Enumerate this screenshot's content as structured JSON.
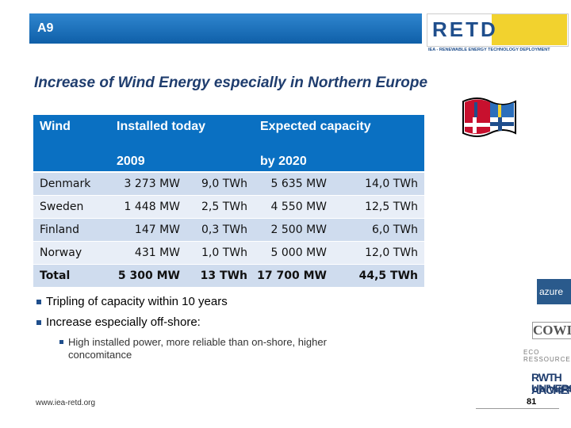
{
  "header": {
    "slide_id": "A9"
  },
  "logo": {
    "name": "RETD",
    "subtitle": "IEA - RENEWABLE ENERGY TECHNOLOGY DEPLOYMENT"
  },
  "title": "Increase of Wind Energy especially in Northern Europe",
  "table": {
    "header": {
      "wind": "Wind",
      "installed": "Installed today",
      "expected": "Expected capacity",
      "installed_year": "2009",
      "expected_year": "by 2020"
    },
    "rows": [
      [
        "Denmark",
        "3 273 MW",
        "9,0 TWh",
        "5 635 MW",
        "14,0 TWh"
      ],
      [
        "Sweden",
        "1 448 MW",
        "2,5 TWh",
        "4 550 MW",
        "12,5 TWh"
      ],
      [
        "Finland",
        "147 MW",
        "0,3 TWh",
        "2 500 MW",
        "6,0 TWh"
      ],
      [
        "Norway",
        "431 MW",
        "1,0 TWh",
        "5 000 MW",
        "12,0 TWh"
      ],
      [
        "Total",
        "5 300 MW",
        "13 TWh",
        "17 700 MW",
        "44,5 TWh"
      ]
    ]
  },
  "bullets": [
    "Tripling of capacity within 10 years",
    "Increase especially off-shore:"
  ],
  "sub_bullets": [
    "High installed power, more reliable than on-shore, higher concomitance"
  ],
  "footer": {
    "url": "www.iea-retd.org",
    "page": "81"
  },
  "partners": [
    "azure",
    "COWI",
    "ECO RESSOURCES",
    "RWTH AACHEN",
    "UNIVERSITY"
  ]
}
